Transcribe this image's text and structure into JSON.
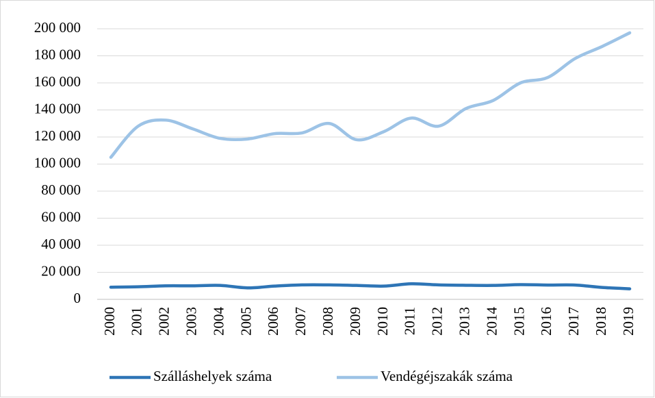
{
  "chart_data": {
    "type": "line",
    "categories": [
      "2000",
      "2001",
      "2002",
      "2003",
      "2004",
      "2005",
      "2006",
      "2007",
      "2008",
      "2009",
      "2010",
      "2011",
      "2012",
      "2013",
      "2014",
      "2015",
      "2016",
      "2017",
      "2018",
      "2019"
    ],
    "series": [
      {
        "name": "Szálláshelyek száma",
        "color": "#2e75b6",
        "values": [
          9000,
          9300,
          10000,
          10000,
          10300,
          8500,
          9800,
          10700,
          10700,
          10300,
          9800,
          11500,
          10700,
          10400,
          10300,
          10900,
          10600,
          10600,
          8800,
          7800
        ]
      },
      {
        "name": "Vendégéjszakák száma",
        "color": "#9dc3e6",
        "values": [
          105000,
          128000,
          132500,
          126000,
          119000,
          118500,
          122500,
          123000,
          130000,
          118000,
          124000,
          134000,
          128000,
          141000,
          147000,
          160000,
          164000,
          178000,
          187000,
          197000
        ]
      }
    ],
    "ylim": [
      0,
      200000
    ],
    "yticks": [
      0,
      {
        "value": 20000,
        "label": "20 000"
      },
      {
        "value": 40000,
        "label": "40 000"
      },
      {
        "value": 60000,
        "label": "60 000"
      },
      {
        "value": 80000,
        "label": "80 000"
      },
      {
        "value": 100000,
        "label": "100 000"
      },
      {
        "value": 120000,
        "label": "120 000"
      },
      {
        "value": 140000,
        "label": "140 000"
      },
      {
        "value": 160000,
        "label": "160 000"
      },
      {
        "value": 180000,
        "label": "180 000"
      },
      {
        "value": 200000,
        "label": "200 000"
      }
    ],
    "grid": true,
    "legend": "bottom"
  }
}
